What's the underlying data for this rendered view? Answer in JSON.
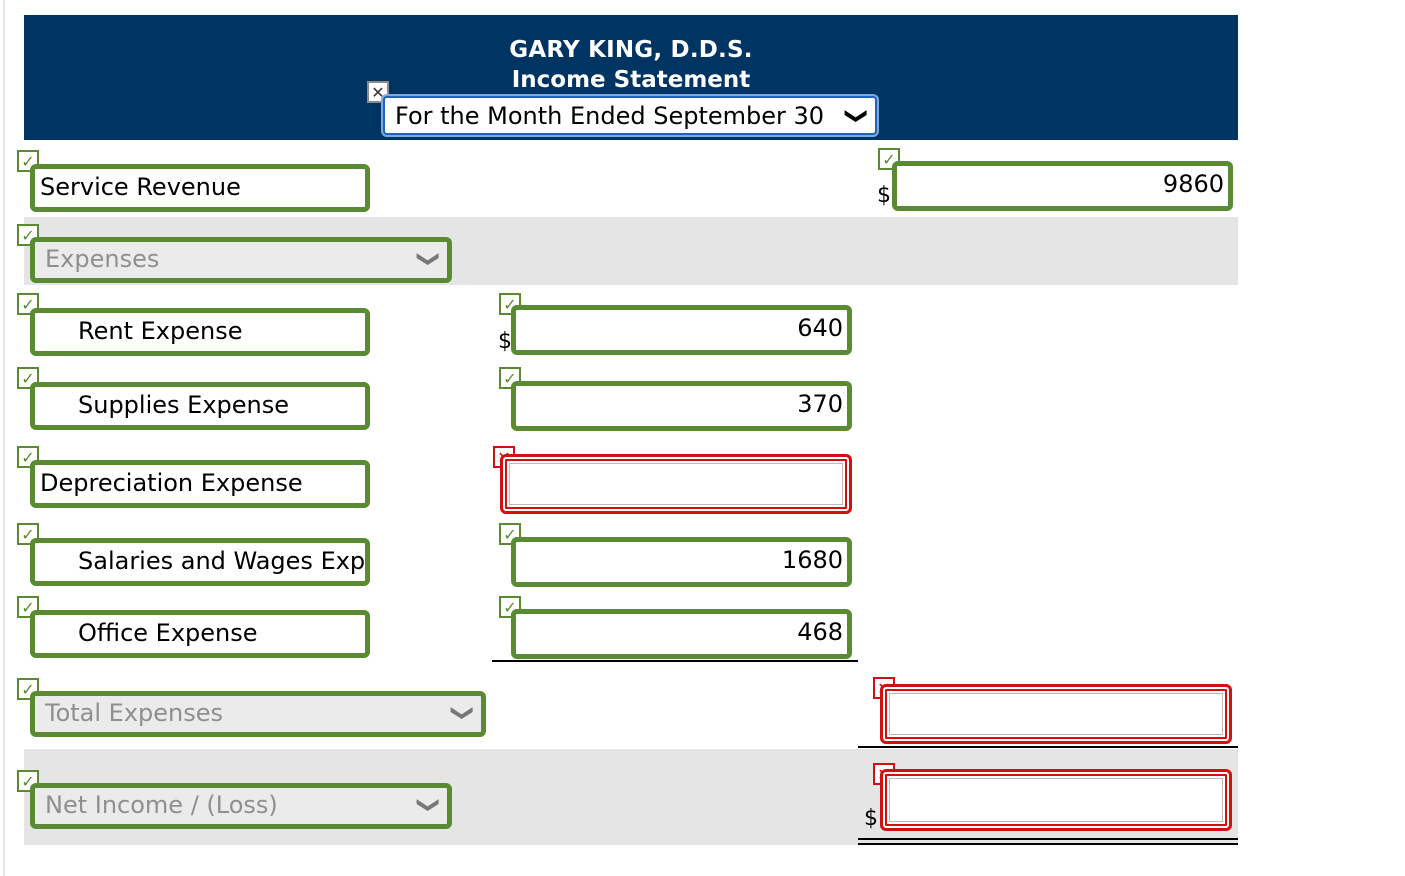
{
  "header": {
    "company": "GARY KING, D.D.S.",
    "statement": "Income Statement",
    "period_select": "For the Month Ended September 30"
  },
  "icons": {
    "check": "✓",
    "cross": "✕",
    "chevron": "❯"
  },
  "rows": {
    "service_revenue": {
      "label": "Service Revenue",
      "amount": "9860",
      "currency": "$"
    },
    "expenses_select": "Expenses",
    "rent": {
      "label": "Rent Expense",
      "amount": "640",
      "currency": "$"
    },
    "supplies": {
      "label": "Supplies Expense",
      "amount": "370"
    },
    "depreciation": {
      "label": "Depreciation Expense",
      "amount": ""
    },
    "salaries": {
      "label": "Salaries and Wages Exp",
      "amount": "1680"
    },
    "office": {
      "label": "Office Expense",
      "amount": "468"
    },
    "total_expenses_select": "Total Expenses",
    "total_expenses_amount": "",
    "net_income_select": "Net Income / (Loss)",
    "net_income_amount": "",
    "net_income_currency": "$"
  },
  "colors": {
    "header_bg": "#003462",
    "correct": "#5a8a32",
    "incorrect": "#d31010",
    "band": "#e5e5e5"
  }
}
